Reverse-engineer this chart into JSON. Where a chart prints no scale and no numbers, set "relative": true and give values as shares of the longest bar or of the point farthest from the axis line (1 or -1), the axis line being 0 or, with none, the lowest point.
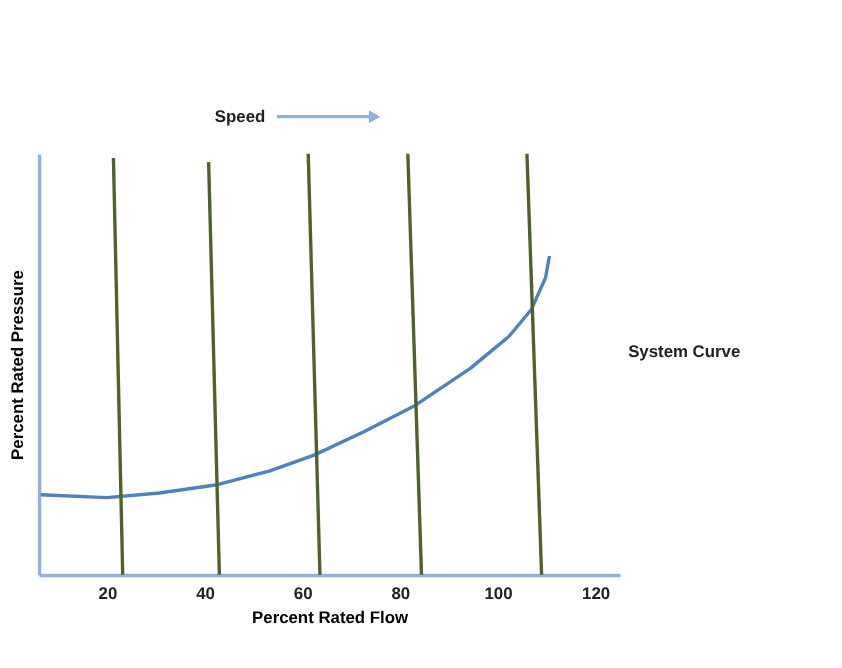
{
  "chart_data": {
    "type": "line",
    "xlabel": "Percent Rated Flow",
    "ylabel": "Percent Rated Pressure",
    "relative": true,
    "xlim": [
      6,
      125
    ],
    "xticks": [
      20,
      40,
      60,
      80,
      100,
      120
    ],
    "grid": false,
    "marker": "none",
    "line_style": "solid",
    "series": [
      {
        "color": "#4f81bd",
        "x": [
          6.4,
          20,
          30.7,
          42.2,
          53.2,
          62.4,
          72.7,
          82.8,
          94.4,
          102.4,
          106.9,
          109.8,
          110.6
        ],
        "values": [
          0.19,
          0.183,
          0.194,
          0.213,
          0.246,
          0.284,
          0.34,
          0.4,
          0.49,
          0.567,
          0.63,
          0.705,
          0.757
        ]
      },
      {
        "color": "#4f6228",
        "x": [
          23.2,
          21.3
        ],
        "values": [
          0,
          0.99
        ]
      },
      {
        "color": "#4f6228",
        "x": [
          43,
          40.8
        ],
        "values": [
          0,
          0.98
        ]
      },
      {
        "color": "#4f6228",
        "x": [
          63.6,
          61.2
        ],
        "values": [
          0,
          1
        ]
      },
      {
        "color": "#4f6228",
        "x": [
          84.4,
          81.6
        ],
        "values": [
          0,
          1
        ]
      },
      {
        "color": "#4f6228",
        "x": [
          109,
          106
        ],
        "values": [
          0,
          1
        ]
      }
    ],
    "annotations": [
      "Speed",
      "System Curve"
    ]
  }
}
